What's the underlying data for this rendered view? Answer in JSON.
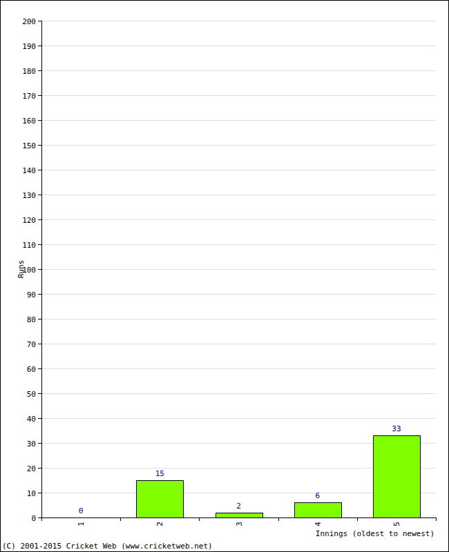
{
  "chart_data": {
    "type": "bar",
    "x_label": "Innings (oldest to newest)",
    "y_label": "Runs",
    "annotations": [
      "(C) 2001-2015 Cricket Web (www.cricketweb.net)"
    ],
    "categories": [
      "1",
      "2",
      "3",
      "4",
      "5"
    ],
    "values": [
      0,
      15,
      2,
      6,
      33
    ],
    "color": "#80ff00",
    "ylim": [
      0,
      200
    ],
    "yticks": [
      0,
      10,
      20,
      30,
      40,
      50,
      60,
      70,
      80,
      90,
      100,
      110,
      120,
      130,
      140,
      150,
      160,
      170,
      180,
      190,
      200
    ],
    "grid": true,
    "data_labels": true
  }
}
